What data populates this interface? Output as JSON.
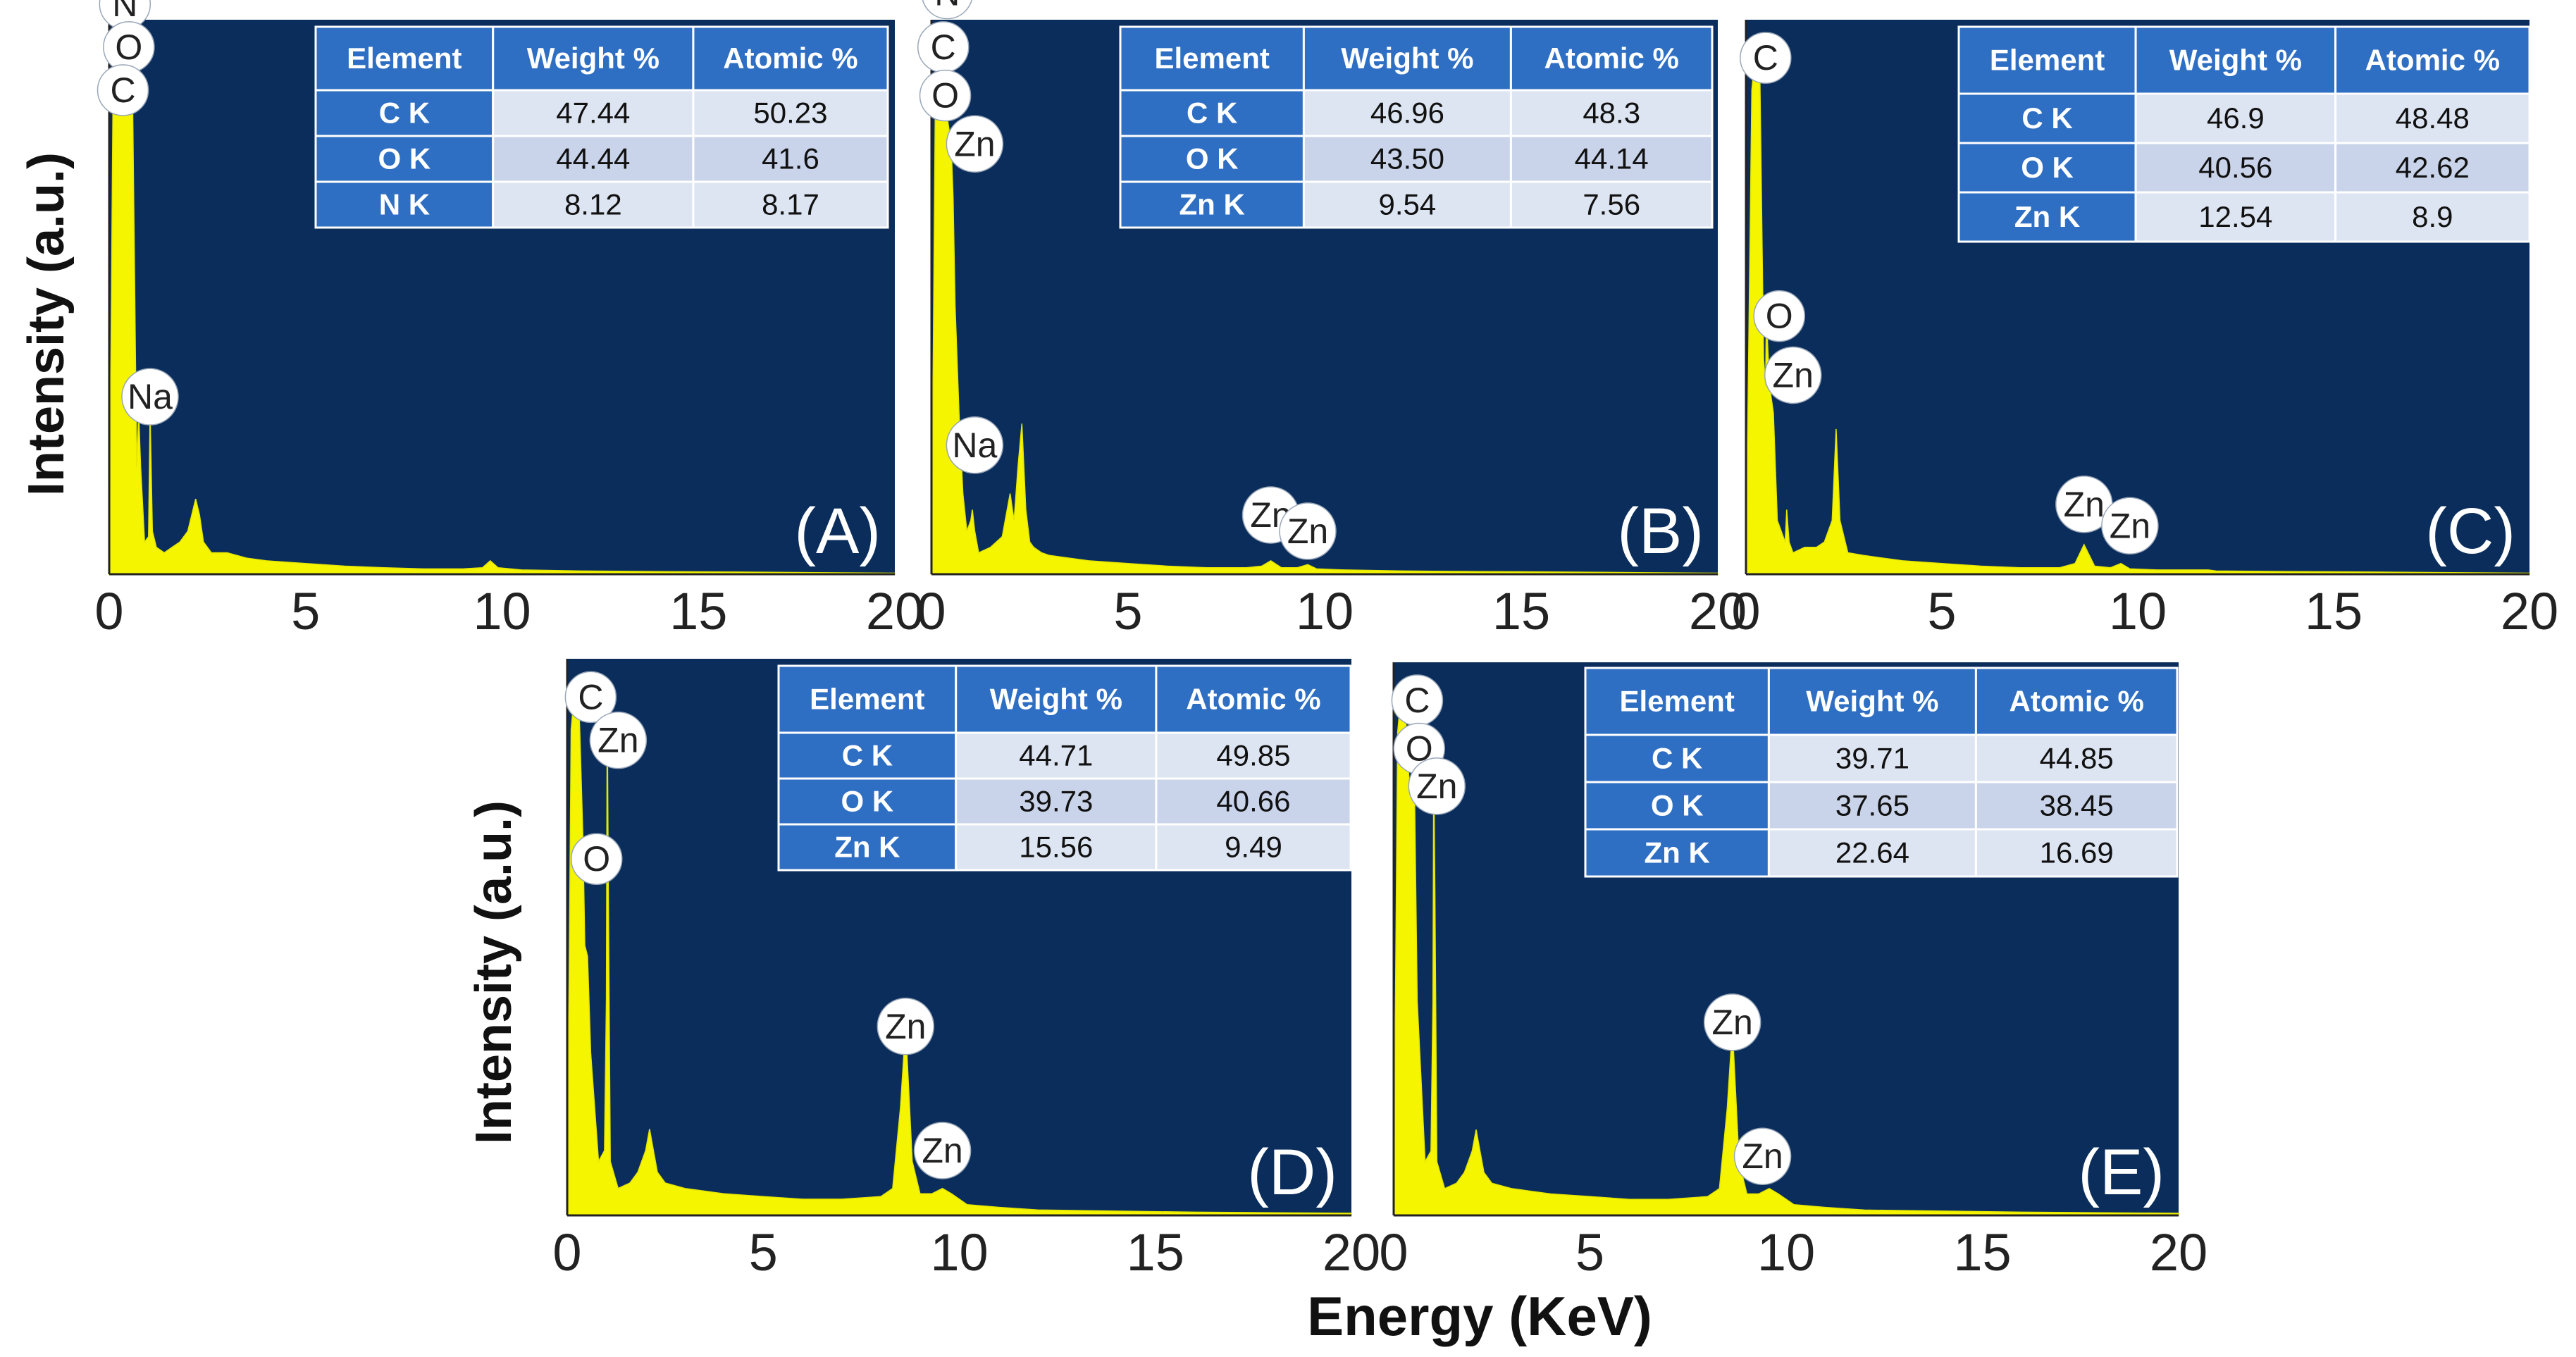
{
  "chart_data": [
    {
      "type": "area",
      "panel_label": "(A)",
      "xlabel": "",
      "ylabel": "Intensity (a.u.)",
      "xlim": [
        0,
        20
      ],
      "xticks": [
        "0",
        "5",
        "10",
        "15",
        "20"
      ],
      "spectrum": {
        "x": [
          0.0,
          0.1,
          0.2,
          0.3,
          0.4,
          0.45,
          0.5,
          0.55,
          0.6,
          0.7,
          0.75,
          0.8,
          0.9,
          1.0,
          1.04,
          1.1,
          1.2,
          1.4,
          1.6,
          1.8,
          2.0,
          2.1,
          2.2,
          2.3,
          2.4,
          2.6,
          3.0,
          3.5,
          4.0,
          5.0,
          6.0,
          7.0,
          8.0,
          9.0,
          9.5,
          9.7,
          9.9,
          10.5,
          12.0,
          14.0,
          16.0,
          18.0,
          20.0
        ],
        "y": [
          0.0,
          0.92,
          0.95,
          0.92,
          0.97,
          0.93,
          0.9,
          0.92,
          0.86,
          0.2,
          0.3,
          0.2,
          0.06,
          0.07,
          0.3,
          0.08,
          0.05,
          0.04,
          0.05,
          0.06,
          0.08,
          0.11,
          0.14,
          0.11,
          0.06,
          0.04,
          0.04,
          0.03,
          0.025,
          0.02,
          0.015,
          0.012,
          0.01,
          0.01,
          0.012,
          0.025,
          0.012,
          0.008,
          0.006,
          0.005,
          0.004,
          0.003,
          0.002
        ]
      },
      "peak_labels": [
        {
          "text": "N",
          "x": 0.4,
          "y": 1.06
        },
        {
          "text": "O",
          "x": 0.5,
          "y": 0.98
        },
        {
          "text": "C",
          "x": 0.35,
          "y": 0.9
        },
        {
          "text": "Na",
          "x": 1.04,
          "y": 0.33
        }
      ],
      "table": {
        "headers": [
          "Element",
          "Weight %",
          "Atomic %"
        ],
        "rows": [
          {
            "element": "C K",
            "weight": "47.44",
            "atomic": "50.23"
          },
          {
            "element": "O K",
            "weight": "44.44",
            "atomic": "41.6"
          },
          {
            "element": "N K",
            "weight": "8.12",
            "atomic": "8.17"
          }
        ]
      }
    },
    {
      "type": "area",
      "panel_label": "(B)",
      "xlabel": "",
      "ylabel": "",
      "xlim": [
        0,
        20
      ],
      "xticks": [
        "0",
        "5",
        "10",
        "15",
        "20"
      ],
      "spectrum": {
        "x": [
          0.0,
          0.1,
          0.2,
          0.3,
          0.4,
          0.5,
          0.55,
          0.6,
          0.7,
          0.8,
          0.9,
          1.0,
          1.04,
          1.1,
          1.2,
          1.5,
          1.8,
          2.0,
          2.1,
          2.2,
          2.3,
          2.4,
          2.5,
          2.6,
          2.8,
          3.0,
          3.5,
          4.0,
          5.0,
          6.0,
          7.0,
          8.0,
          8.4,
          8.63,
          8.9,
          9.3,
          9.57,
          9.8,
          10.5,
          12.0,
          14.0,
          16.0,
          18.0,
          20.0
        ],
        "y": [
          0.0,
          0.9,
          0.95,
          0.9,
          0.85,
          0.8,
          0.7,
          0.5,
          0.3,
          0.15,
          0.08,
          0.1,
          0.12,
          0.08,
          0.04,
          0.05,
          0.07,
          0.15,
          0.1,
          0.2,
          0.28,
          0.12,
          0.06,
          0.05,
          0.04,
          0.035,
          0.03,
          0.025,
          0.02,
          0.015,
          0.012,
          0.012,
          0.015,
          0.025,
          0.012,
          0.012,
          0.018,
          0.01,
          0.008,
          0.006,
          0.005,
          0.004,
          0.003,
          0.002
        ]
      },
      "peak_labels": [
        {
          "text": "N",
          "x": 0.4,
          "y": 1.08
        },
        {
          "text": "C",
          "x": 0.3,
          "y": 0.98
        },
        {
          "text": "O",
          "x": 0.35,
          "y": 0.89
        },
        {
          "text": "Zn",
          "x": 1.1,
          "y": 0.8
        },
        {
          "text": "Na",
          "x": 1.1,
          "y": 0.24
        },
        {
          "text": "Zn",
          "x": 8.63,
          "y": 0.11
        },
        {
          "text": "Zn",
          "x": 9.57,
          "y": 0.08
        }
      ],
      "table": {
        "headers": [
          "Element",
          "Weight %",
          "Atomic %"
        ],
        "rows": [
          {
            "element": "C K",
            "weight": "46.96",
            "atomic": "48.3"
          },
          {
            "element": "O K",
            "weight": "43.50",
            "atomic": "44.14"
          },
          {
            "element": "Zn K",
            "weight": "9.54",
            "atomic": "7.56"
          }
        ]
      }
    },
    {
      "type": "area",
      "panel_label": "(C)",
      "xlabel": "",
      "ylabel": "",
      "xlim": [
        0,
        20
      ],
      "xticks": [
        "0",
        "5",
        "10",
        "15",
        "20"
      ],
      "spectrum": {
        "x": [
          0.0,
          0.15,
          0.25,
          0.3,
          0.35,
          0.45,
          0.5,
          0.52,
          0.6,
          0.7,
          0.8,
          0.9,
          1.0,
          1.04,
          1.1,
          1.2,
          1.5,
          1.8,
          2.0,
          2.2,
          2.3,
          2.4,
          2.6,
          3.0,
          3.5,
          4.0,
          5.0,
          6.0,
          7.0,
          8.0,
          8.4,
          8.63,
          8.9,
          9.3,
          9.57,
          9.8,
          10.5,
          11.8,
          12.0,
          14.0,
          16.0,
          18.0,
          20.0
        ],
        "y": [
          0.0,
          0.9,
          0.98,
          1.0,
          0.95,
          0.4,
          0.35,
          0.48,
          0.35,
          0.3,
          0.1,
          0.08,
          0.06,
          0.12,
          0.06,
          0.04,
          0.05,
          0.05,
          0.06,
          0.1,
          0.27,
          0.1,
          0.04,
          0.035,
          0.03,
          0.025,
          0.02,
          0.015,
          0.012,
          0.012,
          0.02,
          0.055,
          0.015,
          0.012,
          0.02,
          0.01,
          0.008,
          0.008,
          0.006,
          0.005,
          0.004,
          0.003,
          0.002
        ]
      },
      "peak_labels": [
        {
          "text": "C",
          "x": 0.5,
          "y": 0.96
        },
        {
          "text": "O",
          "x": 0.85,
          "y": 0.48
        },
        {
          "text": "Zn",
          "x": 1.2,
          "y": 0.37
        },
        {
          "text": "Zn",
          "x": 8.63,
          "y": 0.13
        },
        {
          "text": "Zn",
          "x": 9.8,
          "y": 0.09
        }
      ],
      "table": {
        "headers": [
          "Element",
          "Weight %",
          "Atomic %"
        ],
        "rows": [
          {
            "element": "C K",
            "weight": "46.9",
            "atomic": "48.48"
          },
          {
            "element": "O K",
            "weight": "40.56",
            "atomic": "42.62"
          },
          {
            "element": "Zn K",
            "weight": "12.54",
            "atomic": "8.9"
          }
        ]
      }
    },
    {
      "type": "area",
      "panel_label": "(D)",
      "xlabel": "",
      "ylabel": "Intensity (a.u.)",
      "xlim": [
        0,
        20
      ],
      "xticks": [
        "0",
        "5",
        "10",
        "15",
        "20"
      ],
      "spectrum": {
        "x": [
          0.0,
          0.1,
          0.2,
          0.27,
          0.32,
          0.4,
          0.45,
          0.52,
          0.6,
          0.8,
          0.95,
          1.0,
          1.02,
          1.05,
          1.1,
          1.3,
          1.6,
          1.8,
          2.0,
          2.1,
          2.2,
          2.3,
          2.5,
          3.0,
          3.5,
          4.0,
          5.0,
          6.0,
          7.0,
          8.0,
          8.3,
          8.5,
          8.63,
          8.8,
          9.0,
          9.3,
          9.57,
          9.8,
          10.2,
          11.0,
          12.0,
          14.0,
          16.0,
          18.0,
          20.0
        ],
        "y": [
          0.0,
          0.9,
          0.98,
          1.0,
          0.9,
          0.7,
          0.5,
          0.48,
          0.3,
          0.1,
          0.12,
          0.4,
          0.95,
          0.6,
          0.1,
          0.05,
          0.06,
          0.08,
          0.12,
          0.16,
          0.12,
          0.08,
          0.06,
          0.05,
          0.045,
          0.04,
          0.035,
          0.03,
          0.03,
          0.035,
          0.05,
          0.2,
          0.35,
          0.1,
          0.04,
          0.04,
          0.05,
          0.04,
          0.02,
          0.015,
          0.01,
          0.008,
          0.006,
          0.005,
          0.004
        ]
      },
      "peak_labels": [
        {
          "text": "C",
          "x": 0.6,
          "y": 0.96
        },
        {
          "text": "Zn",
          "x": 1.3,
          "y": 0.88
        },
        {
          "text": "O",
          "x": 0.75,
          "y": 0.66
        },
        {
          "text": "Zn",
          "x": 8.63,
          "y": 0.35
        },
        {
          "text": "Zn",
          "x": 9.57,
          "y": 0.12
        }
      ],
      "table": {
        "headers": [
          "Element",
          "Weight %",
          "Atomic %"
        ],
        "rows": [
          {
            "element": "C K",
            "weight": "44.71",
            "atomic": "49.85"
          },
          {
            "element": "O K",
            "weight": "39.73",
            "atomic": "40.66"
          },
          {
            "element": "Zn K",
            "weight": "15.56",
            "atomic": "9.49"
          }
        ]
      }
    },
    {
      "type": "area",
      "panel_label": "(E)",
      "xlabel": "Energy (KeV)",
      "ylabel": "",
      "xlim": [
        0,
        20
      ],
      "xticks": [
        "0",
        "5",
        "10",
        "15",
        "20"
      ],
      "spectrum": {
        "x": [
          0.0,
          0.1,
          0.2,
          0.27,
          0.32,
          0.4,
          0.52,
          0.6,
          0.8,
          0.95,
          1.0,
          1.02,
          1.05,
          1.1,
          1.3,
          1.6,
          1.8,
          2.0,
          2.1,
          2.2,
          2.3,
          2.5,
          3.0,
          3.5,
          4.0,
          5.0,
          6.0,
          7.0,
          8.0,
          8.3,
          8.5,
          8.63,
          8.8,
          9.0,
          9.3,
          9.57,
          9.8,
          10.2,
          11.0,
          12.0,
          14.0,
          16.0,
          18.0,
          20.0
        ],
        "y": [
          0.0,
          0.9,
          0.98,
          1.0,
          0.9,
          0.8,
          0.85,
          0.4,
          0.1,
          0.12,
          0.4,
          0.85,
          0.6,
          0.1,
          0.05,
          0.06,
          0.08,
          0.12,
          0.16,
          0.12,
          0.08,
          0.06,
          0.05,
          0.045,
          0.04,
          0.035,
          0.03,
          0.03,
          0.035,
          0.05,
          0.2,
          0.35,
          0.1,
          0.04,
          0.04,
          0.05,
          0.04,
          0.02,
          0.015,
          0.01,
          0.008,
          0.006,
          0.005,
          0.004
        ]
      },
      "peak_labels": [
        {
          "text": "C",
          "x": 0.6,
          "y": 0.96
        },
        {
          "text": "O",
          "x": 0.65,
          "y": 0.87
        },
        {
          "text": "Zn",
          "x": 1.1,
          "y": 0.8
        },
        {
          "text": "Zn",
          "x": 8.63,
          "y": 0.36
        },
        {
          "text": "Zn",
          "x": 9.4,
          "y": 0.11
        }
      ],
      "table": {
        "headers": [
          "Element",
          "Weight %",
          "Atomic %"
        ],
        "rows": [
          {
            "element": "C K",
            "weight": "39.71",
            "atomic": "44.85"
          },
          {
            "element": "O K",
            "weight": "37.65",
            "atomic": "38.45"
          },
          {
            "element": "Zn K",
            "weight": "22.64",
            "atomic": "16.69"
          }
        ]
      }
    }
  ],
  "figure": {
    "ylabel_top": "Intensity (a.u.)",
    "ylabel_bottom": "Intensity (a.u.)",
    "xlabel": "Energy (KeV)"
  },
  "colors": {
    "plot_background": "#0a2d5c",
    "spectrum_fill": "#f5f500",
    "table_header": "#2f6fc3"
  }
}
